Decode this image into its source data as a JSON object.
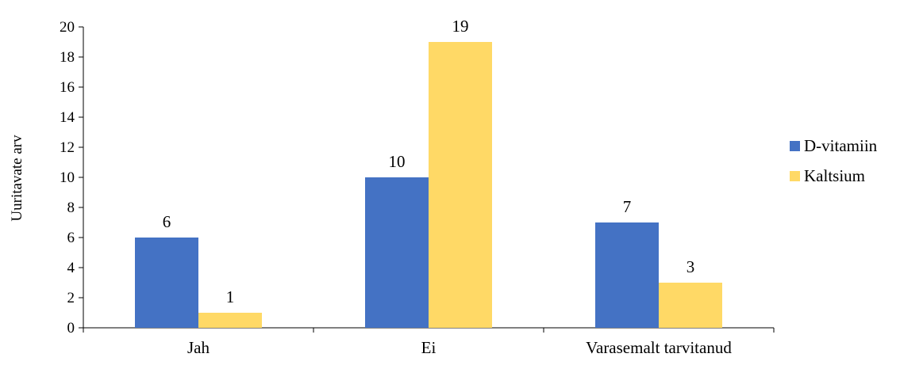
{
  "chart_data": {
    "type": "bar",
    "categories": [
      "Jah",
      "Ei",
      "Varasemalt tarvitanud"
    ],
    "series": [
      {
        "name": "D-vitamiin",
        "values": [
          6,
          10,
          7
        ],
        "color": "#4472C4"
      },
      {
        "name": "Kaltsium",
        "values": [
          1,
          19,
          3
        ],
        "color": "#FFD966"
      }
    ],
    "ylabel": "Uuritavate arv",
    "xlabel": "",
    "ylim": [
      0,
      20
    ],
    "yticks": [
      0,
      2,
      4,
      6,
      8,
      10,
      12,
      14,
      16,
      18,
      20
    ],
    "grid": false,
    "legend_position": "right",
    "data_labels": true
  }
}
